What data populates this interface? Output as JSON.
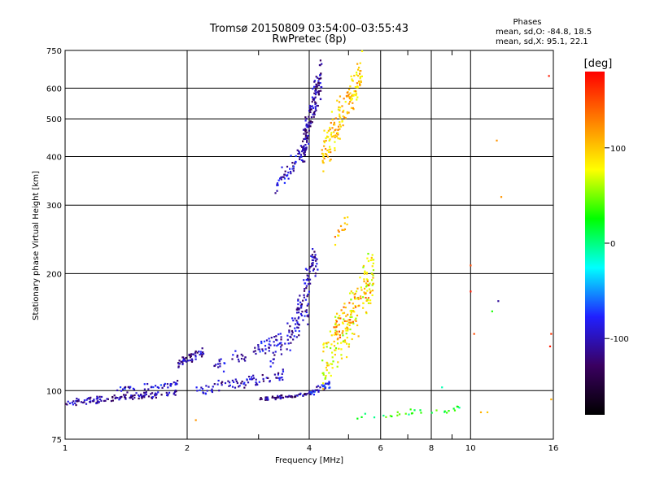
{
  "chart_data": {
    "type": "scatter",
    "title": "Tromsø 20150809 03:54:00–03:55:43",
    "subtitle": "RwPretec (8p)",
    "annotation": {
      "heading": "Phases",
      "line1": "mean, sd,O: -84.8, 18.5",
      "line2": "mean, sd,X:  95.1, 22.1"
    },
    "xlabel": "Frequency [MHz]",
    "ylabel": "Stationary phase Virtual Height [km]",
    "x_scale": "log",
    "y_scale": "log",
    "xlim": [
      1,
      16
    ],
    "ylim": [
      75,
      750
    ],
    "xticks": [
      1,
      2,
      4,
      6,
      8,
      10,
      16
    ],
    "yticks": [
      75,
      100,
      200,
      300,
      400,
      500,
      600,
      750
    ],
    "grid": true,
    "colorbar": {
      "label": "[deg]",
      "range": [
        -180,
        180
      ],
      "ticks": [
        100,
        0,
        -100
      ],
      "colormap": [
        "#000000",
        "#3a0060",
        "#2020ff",
        "#00ffff",
        "#00ff00",
        "#ffff00",
        "#ff8000",
        "#ff0000"
      ]
    },
    "series": [
      {
        "segments": [
          {
            "x0": 1.0,
            "x1": 1.9,
            "y0": 93,
            "y1": 99,
            "phase": -110,
            "n": 130,
            "spread": 0.025
          },
          {
            "x0": 1.3,
            "x1": 1.9,
            "y0": 100,
            "y1": 104,
            "phase": -95,
            "n": 40,
            "spread": 0.03
          },
          {
            "x0": 1.9,
            "x1": 2.2,
            "y0": 118,
            "y1": 126,
            "phase": -105,
            "n": 50,
            "spread": 0.04
          },
          {
            "x0": 2.1,
            "x1": 3.5,
            "y0": 100,
            "y1": 110,
            "phase": -100,
            "n": 80,
            "spread": 0.04
          },
          {
            "x0": 2.3,
            "x1": 3.4,
            "y0": 115,
            "y1": 135,
            "phase": -95,
            "n": 60,
            "spread": 0.05
          },
          {
            "x0": 3.0,
            "x1": 4.0,
            "y0": 95,
            "y1": 98,
            "phase": -115,
            "n": 60,
            "spread": 0.012
          },
          {
            "x0": 3.2,
            "x1": 4.0,
            "y0": 120,
            "y1": 160,
            "phase": -100,
            "n": 60,
            "spread": 0.08
          },
          {
            "x0": 3.7,
            "x1": 4.2,
            "y0": 150,
            "y1": 230,
            "phase": -105,
            "n": 80,
            "spread": 0.1
          },
          {
            "x0": 4.0,
            "x1": 4.5,
            "y0": 98,
            "y1": 104,
            "phase": -90,
            "n": 40,
            "spread": 0.03
          },
          {
            "x0": 4.3,
            "x1": 5.8,
            "y0": 110,
            "y1": 200,
            "phase": 80,
            "n": 170,
            "spread": 0.2
          },
          {
            "x0": 4.6,
            "x1": 5.8,
            "y0": 140,
            "y1": 190,
            "phase": 120,
            "n": 60,
            "spread": 0.1
          },
          {
            "x0": 4.6,
            "x1": 5.0,
            "y0": 240,
            "y1": 280,
            "phase": 110,
            "n": 14,
            "spread": 0.06
          },
          {
            "x0": 3.3,
            "x1": 3.9,
            "y0": 335,
            "y1": 420,
            "phase": -100,
            "n": 60,
            "spread": 0.05
          },
          {
            "x0": 3.85,
            "x1": 4.3,
            "y0": 420,
            "y1": 660,
            "phase": -110,
            "n": 140,
            "spread": 0.1
          },
          {
            "x0": 4.3,
            "x1": 5.4,
            "y0": 400,
            "y1": 660,
            "phase": 100,
            "n": 160,
            "spread": 0.12
          },
          {
            "x0": 5.2,
            "x1": 9.5,
            "y0": 85,
            "y1": 90,
            "phase": 20,
            "n": 30,
            "spread": 0.03
          }
        ]
      }
    ],
    "scattered_points": [
      [
        10.0,
        210,
        150
      ],
      [
        10.0,
        180,
        170
      ],
      [
        10.2,
        140,
        150
      ],
      [
        11.6,
        440,
        120
      ],
      [
        11.9,
        315,
        120
      ],
      [
        11.7,
        170,
        -110
      ],
      [
        11.3,
        160,
        30
      ],
      [
        15.6,
        645,
        170
      ],
      [
        15.8,
        140,
        160
      ],
      [
        15.7,
        130,
        170
      ],
      [
        15.8,
        95,
        110
      ],
      [
        10.6,
        88,
        110
      ],
      [
        11.0,
        88,
        100
      ],
      [
        8.5,
        102,
        -10
      ],
      [
        2.1,
        84,
        120
      ]
    ]
  }
}
